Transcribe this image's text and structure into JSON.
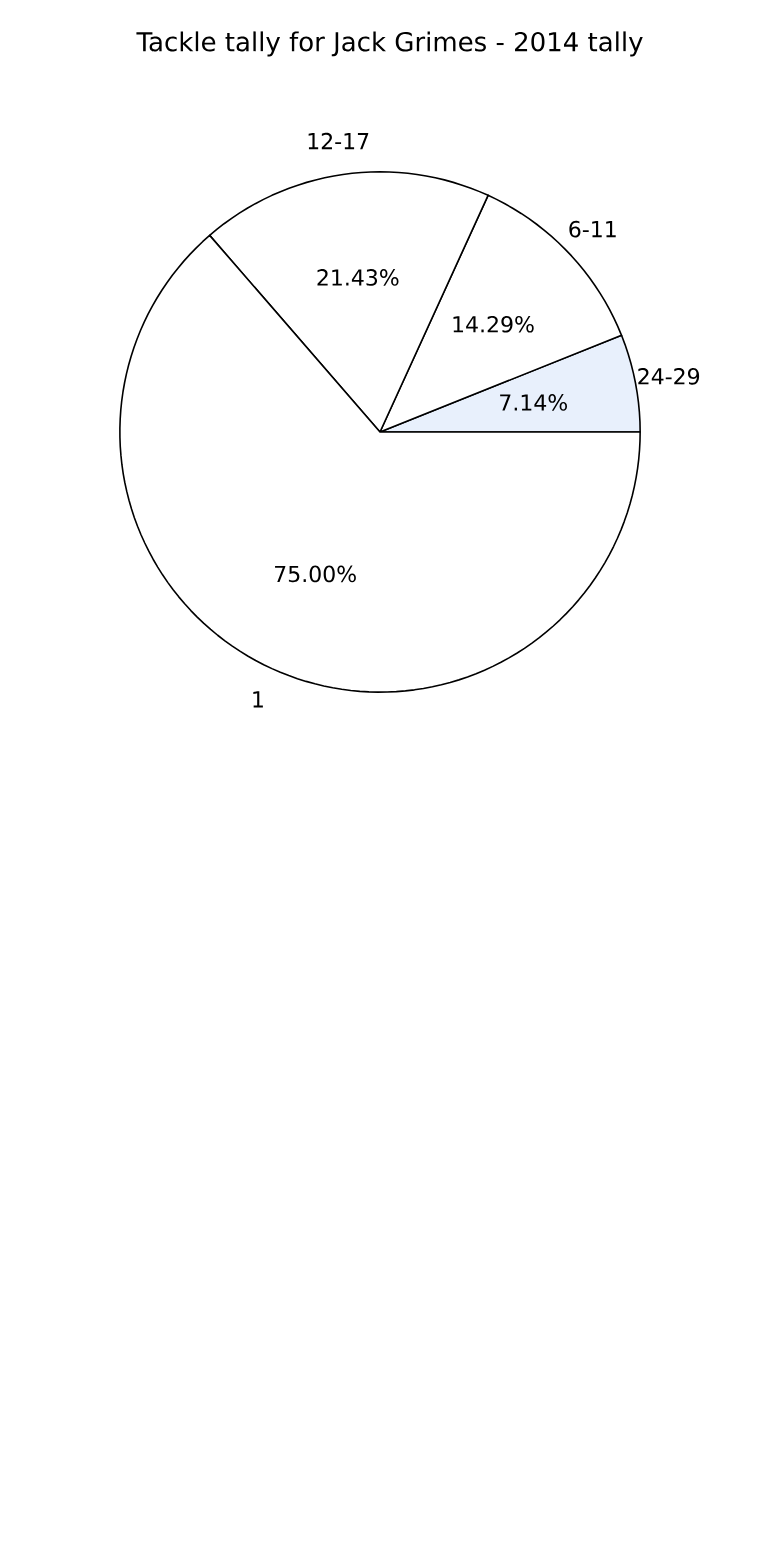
{
  "chart_data": {
    "type": "pie",
    "title": "Tackle tally for Jack Grimes - 2014 tally",
    "categories": [
      "24-29",
      "6-11",
      "12-17",
      "1"
    ],
    "values": [
      7.14,
      14.29,
      21.43,
      75
    ],
    "value_labels": [
      "7.14%",
      "14.29%",
      "21.43%",
      "75.00%"
    ],
    "colors": [
      "#e8f0fc",
      "#ffffff",
      "#ffffff",
      "#ffffff"
    ]
  }
}
